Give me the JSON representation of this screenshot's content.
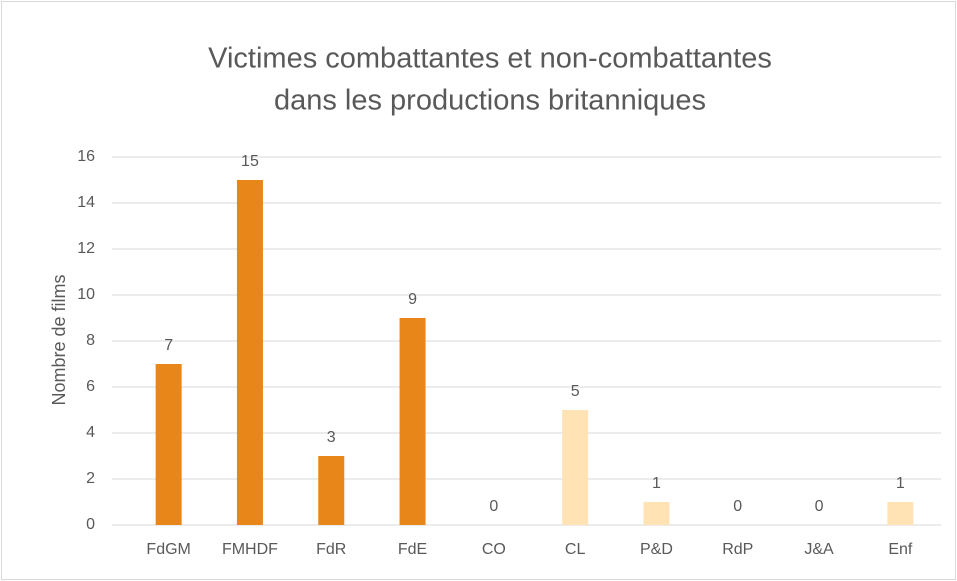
{
  "chart_data": {
    "type": "bar",
    "title": [
      "Victimes combattantes et non-combattantes",
      "dans les productions britanniques"
    ],
    "y_label": "Nombre de films",
    "categories": [
      "FdGM",
      "FMHDF",
      "FdR",
      "FdE",
      "CO",
      "CL",
      "P&D",
      "RdP",
      "J&A",
      "Enf"
    ],
    "values": [
      7,
      15,
      3,
      9,
      0,
      5,
      1,
      0,
      0,
      1
    ],
    "colors": [
      "#e8861a",
      "#e8861a",
      "#e8861a",
      "#e8861a",
      "#ffe3b5",
      "#ffe3b5",
      "#ffe3b5",
      "#ffe3b5",
      "#ffe3b5",
      "#ffe3b5"
    ],
    "ylim": [
      0,
      16
    ],
    "yticks": [
      0,
      2,
      4,
      6,
      8,
      10,
      12,
      14,
      16
    ],
    "grid": true
  }
}
